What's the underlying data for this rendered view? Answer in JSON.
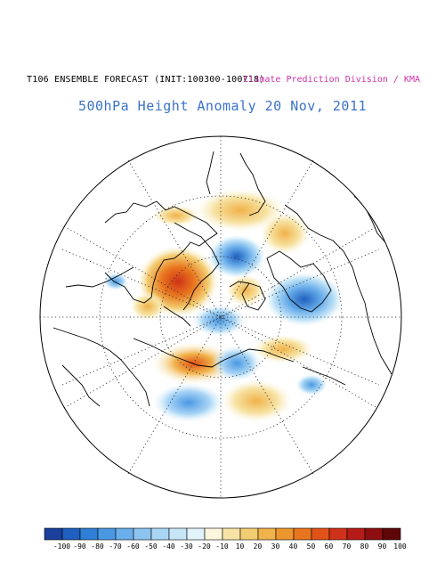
{
  "header": {
    "model_label": "T106 ENSEMBLE FORECAST (INIT:100300-100718)",
    "org_label": "Climate Prediction Division / KMA"
  },
  "title": "500hPa Height Anomaly 20 Nov, 2011",
  "legend": {
    "colors": [
      "#1a3f9c",
      "#1f5fbf",
      "#2f7fd6",
      "#4a98e3",
      "#6aaeea",
      "#8cc4f0",
      "#aad6f5",
      "#c6e6f8",
      "#e2f3fb",
      "#fbf6dc",
      "#f7e3a4",
      "#f3cd72",
      "#f0b24a",
      "#ed962e",
      "#e8761e",
      "#e05218",
      "#cf3218",
      "#b51c17",
      "#8c0e10",
      "#5f0608"
    ],
    "ticks": [
      "-100",
      "-90",
      "-80",
      "-70",
      "-60",
      "-50",
      "-40",
      "-30",
      "-20",
      "-10",
      "10",
      "20",
      "30",
      "40",
      "50",
      "60",
      "70",
      "80",
      "90",
      "100"
    ]
  }
}
